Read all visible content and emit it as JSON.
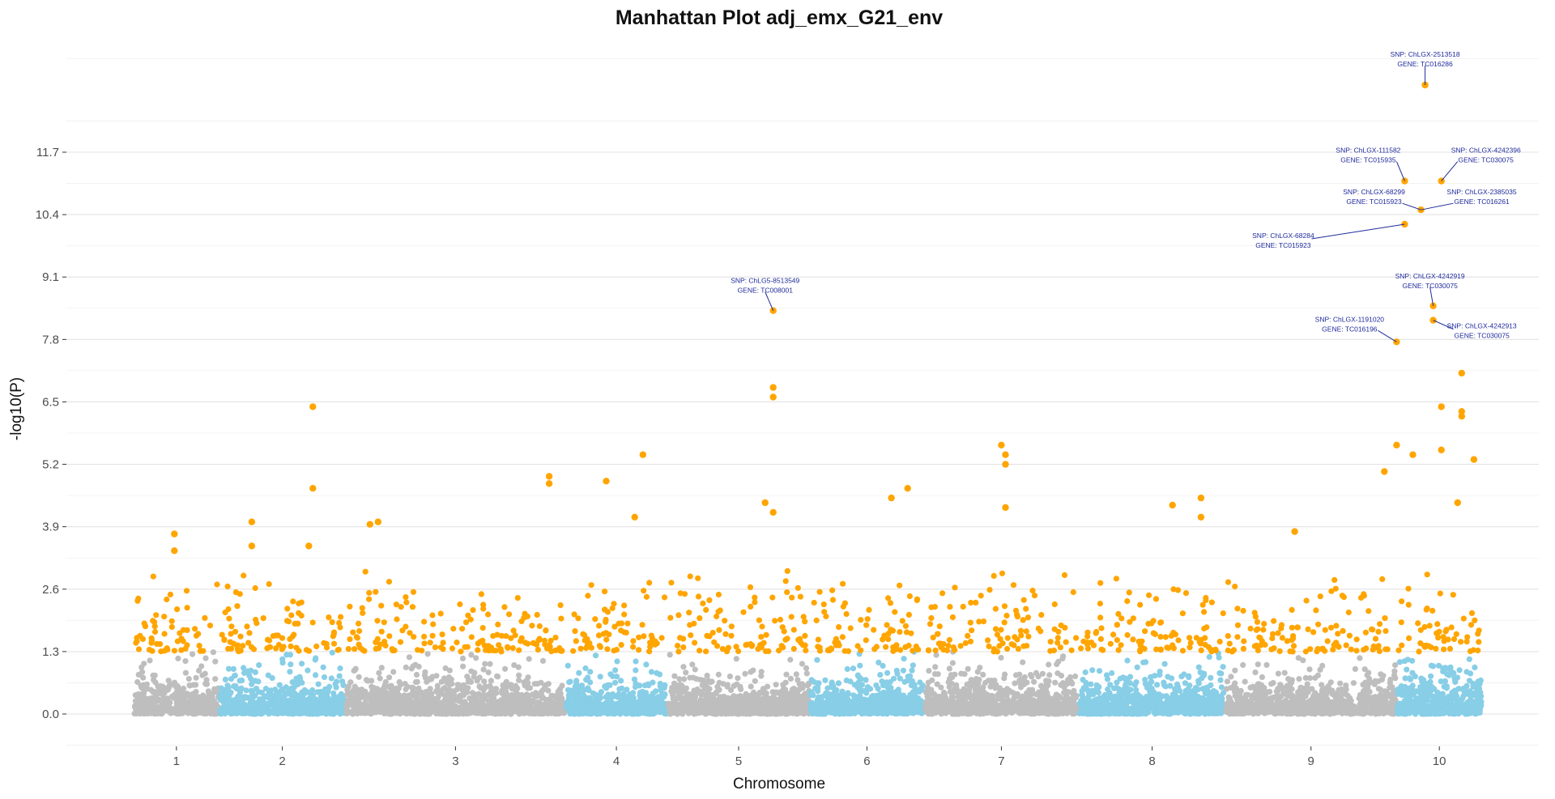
{
  "chart_data": {
    "type": "scatter",
    "title": "Manhattan Plot adj_emx_G21_env",
    "xlabel": "Chromosome",
    "ylabel": "-log10(P)",
    "ylim": [
      -1.5,
      14.5
    ],
    "y_ticks": [
      "0.0",
      "1.3",
      "2.6",
      "3.9",
      "5.2",
      "6.5",
      "7.8",
      "9.1",
      "10.4",
      "11.7"
    ],
    "y_tick_values": [
      0.0,
      1.3,
      2.6,
      3.9,
      5.2,
      6.5,
      7.8,
      9.1,
      10.4,
      11.7
    ],
    "significance_threshold": 1.3,
    "grid": true,
    "legend": "none",
    "colors": {
      "odd_chromosome": "#bebebe",
      "even_chromosome": "#87cee6",
      "above_threshold": "#ffa500",
      "annotation": "#1f2a9b"
    },
    "chromosomes": [
      {
        "label": "1",
        "start": 0.0,
        "end": 2.1
      },
      {
        "label": "2",
        "start": 2.1,
        "end": 5.2
      },
      {
        "label": "3",
        "start": 5.2,
        "end": 10.6
      },
      {
        "label": "4",
        "start": 10.6,
        "end": 13.1
      },
      {
        "label": "5",
        "start": 13.1,
        "end": 16.6
      },
      {
        "label": "6",
        "start": 16.6,
        "end": 19.4
      },
      {
        "label": "7",
        "start": 19.4,
        "end": 23.2
      },
      {
        "label": "8",
        "start": 23.2,
        "end": 26.8
      },
      {
        "label": "9",
        "start": 26.8,
        "end": 31.0
      },
      {
        "label": "10",
        "start": 31.0,
        "end": 33.1
      }
    ],
    "highlighted_points": [
      {
        "x": 1.0,
        "y": 3.75
      },
      {
        "x": 1.0,
        "y": 3.4
      },
      {
        "x": 2.9,
        "y": 4.0
      },
      {
        "x": 2.9,
        "y": 3.5
      },
      {
        "x": 4.4,
        "y": 6.4
      },
      {
        "x": 4.4,
        "y": 4.7
      },
      {
        "x": 4.3,
        "y": 3.5
      },
      {
        "x": 5.8,
        "y": 3.95
      },
      {
        "x": 6.0,
        "y": 4.0
      },
      {
        "x": 10.2,
        "y": 4.95
      },
      {
        "x": 10.2,
        "y": 4.8
      },
      {
        "x": 11.6,
        "y": 4.85
      },
      {
        "x": 12.5,
        "y": 5.4
      },
      {
        "x": 12.3,
        "y": 4.1
      },
      {
        "x": 15.7,
        "y": 8.4
      },
      {
        "x": 15.7,
        "y": 6.8
      },
      {
        "x": 15.7,
        "y": 6.6
      },
      {
        "x": 15.5,
        "y": 4.4
      },
      {
        "x": 15.7,
        "y": 4.2
      },
      {
        "x": 18.6,
        "y": 4.5
      },
      {
        "x": 19.0,
        "y": 4.7
      },
      {
        "x": 21.3,
        "y": 5.6
      },
      {
        "x": 21.4,
        "y": 5.4
      },
      {
        "x": 21.4,
        "y": 5.2
      },
      {
        "x": 21.4,
        "y": 4.3
      },
      {
        "x": 25.5,
        "y": 4.35
      },
      {
        "x": 26.2,
        "y": 4.5
      },
      {
        "x": 26.2,
        "y": 4.1
      },
      {
        "x": 28.5,
        "y": 3.8
      },
      {
        "x": 31.7,
        "y": 13.1
      },
      {
        "x": 31.2,
        "y": 11.1
      },
      {
        "x": 32.1,
        "y": 11.1
      },
      {
        "x": 31.6,
        "y": 10.5
      },
      {
        "x": 31.2,
        "y": 10.2
      },
      {
        "x": 31.9,
        "y": 8.5
      },
      {
        "x": 31.9,
        "y": 8.2
      },
      {
        "x": 31.0,
        "y": 7.75
      },
      {
        "x": 32.6,
        "y": 7.1
      },
      {
        "x": 32.1,
        "y": 6.4
      },
      {
        "x": 32.6,
        "y": 6.3
      },
      {
        "x": 32.6,
        "y": 6.2
      },
      {
        "x": 31.0,
        "y": 5.6
      },
      {
        "x": 32.1,
        "y": 5.5
      },
      {
        "x": 31.4,
        "y": 5.4
      },
      {
        "x": 32.9,
        "y": 5.3
      },
      {
        "x": 30.7,
        "y": 5.05
      },
      {
        "x": 32.5,
        "y": 4.4
      }
    ],
    "annotations": [
      {
        "snp": "SNP:  ChLGX-2513518",
        "gene": "GENE:  TC016286",
        "x": 31.7,
        "y": 13.1
      },
      {
        "snp": "SNP:  ChLGX-111582",
        "gene": "GENE:  TC015935",
        "x": 31.2,
        "y": 11.1
      },
      {
        "snp": "SNP:  ChLGX-4242396",
        "gene": "GENE:  TC030075",
        "x": 32.1,
        "y": 11.1
      },
      {
        "snp": "SNP:  ChLGX-68299",
        "gene": "GENE:  TC015923",
        "x": 31.6,
        "y": 10.5
      },
      {
        "snp": "SNP:  ChLGX-2385035",
        "gene": "GENE:  TC016261",
        "x": 31.6,
        "y": 10.5
      },
      {
        "snp": "SNP:  ChLGX-68284",
        "gene": "GENE:  TC015923",
        "x": 31.2,
        "y": 10.2
      },
      {
        "snp": "SNP:  ChLGX-4242919",
        "gene": "GENE:  TC030075",
        "x": 31.9,
        "y": 8.5
      },
      {
        "snp": "SNP:  ChLGX-1191020",
        "gene": "GENE:  TC016196",
        "x": 31.0,
        "y": 7.75
      },
      {
        "snp": "SNP:  ChLGX-4242913",
        "gene": "GENE:  TC030075",
        "x": 31.9,
        "y": 8.2
      },
      {
        "snp": "SNP:  ChLG5-8513549",
        "gene": "GENE:  TC008001",
        "x": 15.7,
        "y": 8.4
      }
    ]
  }
}
